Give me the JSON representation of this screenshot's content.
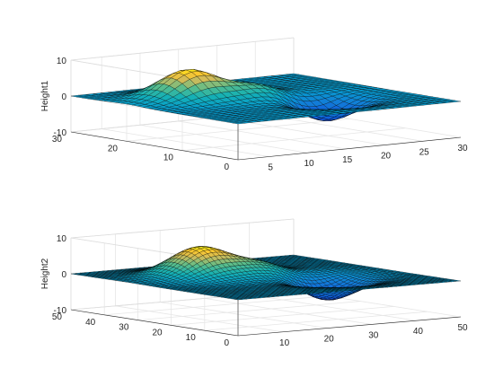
{
  "chart_data": [
    {
      "type": "surface",
      "title": "",
      "xlabel": "",
      "ylabel": "",
      "zlabel": "Height1",
      "xlim": [
        1,
        30
      ],
      "ylim": [
        0,
        30
      ],
      "zlim": [
        -10,
        10
      ],
      "grid": 30,
      "colormap": "parula",
      "xticks": [
        "5",
        "10",
        "15",
        "20",
        "25",
        "30"
      ],
      "xtick_values": [
        5,
        10,
        15,
        20,
        25,
        30
      ],
      "yticks": [
        "0",
        "10",
        "20",
        "30"
      ],
      "ytick_values": [
        0,
        10,
        20,
        30
      ],
      "zticks": [
        "-10",
        "0",
        "10"
      ],
      "ztick_values": [
        -10,
        0,
        10
      ],
      "features": [
        {
          "kind": "peak",
          "x": 9,
          "y": 20,
          "height": 8.1
        },
        {
          "kind": "trough",
          "x": 20,
          "y": 11,
          "height": -6.5
        },
        {
          "kind": "ridge",
          "x": 16,
          "y": 16,
          "height": 3.8
        }
      ]
    },
    {
      "type": "surface",
      "title": "",
      "xlabel": "",
      "ylabel": "",
      "zlabel": "Height2",
      "xlim": [
        0,
        50
      ],
      "ylim": [
        0,
        50
      ],
      "zlim": [
        -10,
        10
      ],
      "grid": 49,
      "colormap": "parula",
      "xticks": [
        "10",
        "20",
        "30",
        "40",
        "50"
      ],
      "xtick_values": [
        10,
        20,
        30,
        40,
        50
      ],
      "yticks": [
        "0",
        "10",
        "20",
        "30",
        "40",
        "50"
      ],
      "ytick_values": [
        0,
        10,
        20,
        30,
        40,
        50
      ],
      "zticks": [
        "-10",
        "0",
        "10"
      ],
      "ztick_values": [
        -10,
        0,
        10
      ],
      "features": [
        {
          "kind": "peak",
          "x": 16,
          "y": 33,
          "height": 8.1
        },
        {
          "kind": "trough",
          "x": 33,
          "y": 18,
          "height": -6.5
        },
        {
          "kind": "ridge",
          "x": 27,
          "y": 27,
          "height": 3.8
        }
      ]
    }
  ]
}
